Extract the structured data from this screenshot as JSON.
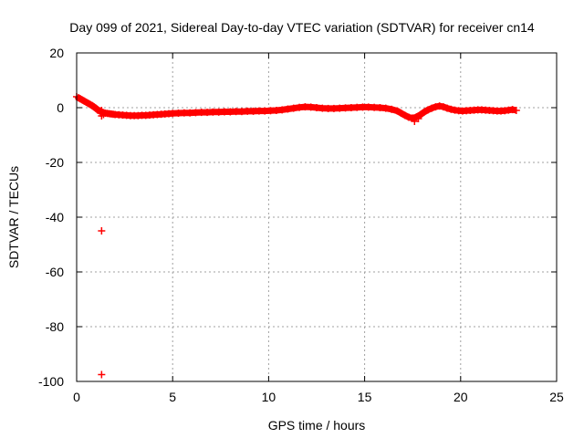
{
  "chart_data": {
    "type": "scatter",
    "title": "Day 099 of 2021, Sidereal Day-to-day VTEC variation (SDTVAR) for receiver cn14",
    "xlabel": "GPS time / hours",
    "ylabel": "SDTVAR / TECUs",
    "xlim": [
      0,
      25
    ],
    "ylim": [
      -100,
      20
    ],
    "x_ticks": [
      0,
      5,
      10,
      15,
      20,
      25
    ],
    "y_ticks": [
      20,
      0,
      -20,
      -40,
      -60,
      -80,
      -100
    ],
    "grid": true,
    "marker": "+",
    "color": "#ff0000",
    "series": [
      {
        "name": "SDTVAR",
        "x": [
          0.0,
          0.1,
          0.2,
          0.3,
          0.4,
          0.5,
          0.6,
          0.7,
          0.8,
          0.9,
          1.0,
          1.1,
          1.2,
          1.3,
          1.4,
          1.5,
          1.6,
          1.7,
          1.8,
          1.9,
          2.0,
          2.2,
          2.4,
          2.6,
          2.8,
          3.0,
          3.2,
          3.4,
          3.6,
          3.8,
          4.0,
          4.2,
          4.4,
          4.6,
          4.8,
          5.0,
          5.3,
          5.6,
          5.9,
          6.2,
          6.5,
          6.8,
          7.1,
          7.4,
          7.7,
          8.0,
          8.3,
          8.6,
          8.9,
          9.2,
          9.5,
          9.8,
          10.1,
          10.4,
          10.7,
          11.0,
          11.3,
          11.6,
          11.9,
          12.2,
          12.5,
          12.8,
          13.1,
          13.4,
          13.7,
          14.0,
          14.3,
          14.6,
          14.9,
          15.2,
          15.5,
          15.8,
          16.1,
          16.4,
          16.7,
          16.9,
          17.1,
          17.3,
          17.5,
          17.7,
          17.9,
          18.1,
          18.3,
          18.5,
          18.7,
          18.9,
          19.1,
          19.3,
          19.5,
          19.7,
          19.9,
          20.1,
          20.3,
          20.5,
          20.7,
          20.9,
          21.1,
          21.3,
          21.5,
          21.7,
          21.9,
          22.1,
          22.3,
          22.5,
          22.7,
          22.9,
          1.3,
          1.25,
          1.3,
          1.4,
          17.6,
          17.8,
          1.3,
          1.3
        ],
        "y": [
          4.0,
          3.6,
          3.2,
          2.8,
          2.4,
          2.0,
          1.6,
          1.2,
          0.8,
          0.3,
          -0.2,
          -0.8,
          -1.2,
          -1.5,
          -1.8,
          -2.0,
          -2.1,
          -2.2,
          -2.3,
          -2.4,
          -2.5,
          -2.6,
          -2.7,
          -2.8,
          -2.9,
          -2.9,
          -2.9,
          -2.8,
          -2.8,
          -2.7,
          -2.6,
          -2.5,
          -2.4,
          -2.3,
          -2.2,
          -2.1,
          -2.0,
          -1.9,
          -1.9,
          -1.8,
          -1.7,
          -1.7,
          -1.6,
          -1.6,
          -1.5,
          -1.5,
          -1.4,
          -1.4,
          -1.3,
          -1.3,
          -1.2,
          -1.2,
          -1.1,
          -1.0,
          -0.8,
          -0.5,
          -0.2,
          0.1,
          0.3,
          0.2,
          0.0,
          -0.2,
          -0.3,
          -0.3,
          -0.2,
          -0.1,
          0.0,
          0.1,
          0.2,
          0.2,
          0.1,
          0.0,
          -0.2,
          -0.6,
          -1.2,
          -2.0,
          -2.8,
          -3.5,
          -3.8,
          -3.4,
          -2.6,
          -1.6,
          -0.8,
          -0.2,
          0.3,
          0.6,
          0.3,
          -0.2,
          -0.6,
          -0.9,
          -1.1,
          -1.2,
          -1.1,
          -1.0,
          -0.9,
          -0.8,
          -0.8,
          -0.9,
          -1.0,
          -1.1,
          -1.2,
          -1.2,
          -1.1,
          -0.9,
          -0.7,
          -1.0,
          -3.0,
          -2.0,
          -1.0,
          -2.5,
          -5.0,
          -4.0,
          -45.0,
          -97.5
        ]
      }
    ]
  }
}
